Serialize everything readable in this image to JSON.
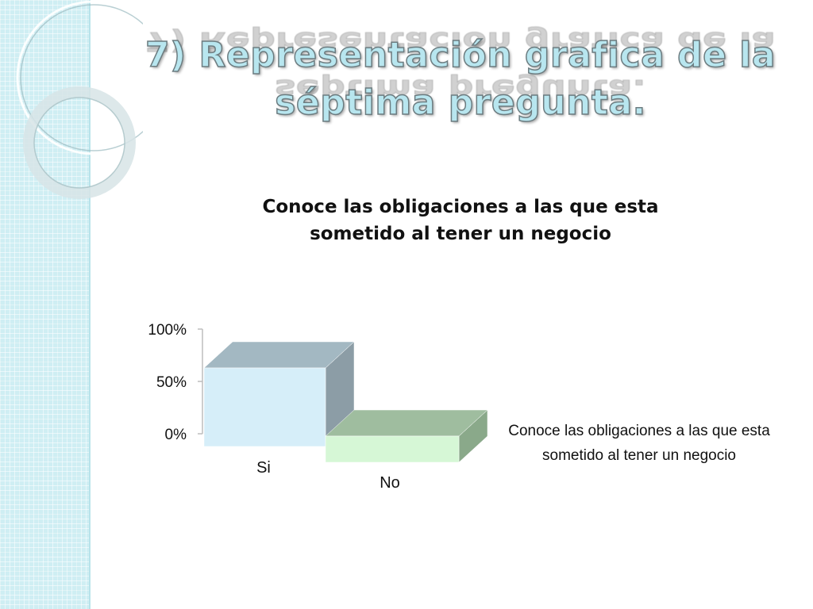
{
  "slide": {
    "title_line1": "7) Representación grafica de la",
    "title_line2": "séptima pregunta."
  },
  "colors": {
    "band": "#cfeef3",
    "si_front": "#d6eef9",
    "si_top": "#a3b8c2",
    "si_side": "#8c9da6",
    "no_front": "#d6f7d6",
    "no_top": "#9fbd9f",
    "no_side": "#8aa98a",
    "axis": "#bdbdbd"
  },
  "chart_data": {
    "type": "bar",
    "title": "Conoce las obligaciones a las que esta sometido al tener un negocio",
    "categories": [
      "Si",
      "No"
    ],
    "series": [
      {
        "name": "Conoce las obligaciones a las que esta sometido al tener un negocio",
        "values": [
          75,
          25
        ]
      }
    ],
    "yticks": [
      "0%",
      "50%",
      "100%"
    ],
    "ylim": [
      0,
      100
    ],
    "legend_position": "right"
  }
}
